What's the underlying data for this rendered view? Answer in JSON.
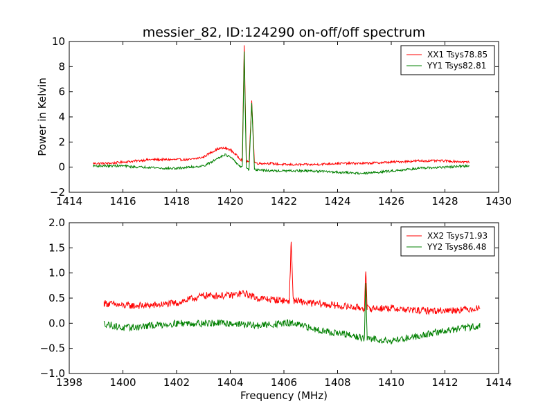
{
  "figure": {
    "title": "messier_82, ID:124290 on-off/off spectrum",
    "xlabel": "Frequency (MHz)",
    "ylabel": "Power in Kelvin"
  },
  "chart_data": [
    {
      "type": "line",
      "title": "messier_82, ID:124290 on-off/off spectrum",
      "ylabel": "Power in Kelvin",
      "xlabel": "",
      "xlim": [
        1414,
        1430
      ],
      "ylim": [
        -2,
        10
      ],
      "xticks": [
        1414,
        1416,
        1418,
        1420,
        1422,
        1424,
        1426,
        1428,
        1430
      ],
      "yticks": [
        -2,
        0,
        2,
        4,
        6,
        8,
        10
      ],
      "grid": false,
      "legend_position": "top-right",
      "series": [
        {
          "name": "XX1 Tsys78.85",
          "color": "#ff0000",
          "x": [
            1414.9,
            1415.5,
            1416.0,
            1416.5,
            1417.0,
            1417.5,
            1418.0,
            1418.5,
            1419.0,
            1419.3,
            1419.6,
            1419.8,
            1420.0,
            1420.2,
            1420.4,
            1420.45,
            1420.52,
            1420.6,
            1420.7,
            1420.8,
            1420.9,
            1421.0,
            1421.5,
            1422.0,
            1423.0,
            1424.0,
            1425.0,
            1426.0,
            1427.0,
            1428.0,
            1428.9
          ],
          "y": [
            0.3,
            0.3,
            0.4,
            0.5,
            0.6,
            0.6,
            0.6,
            0.6,
            0.8,
            1.2,
            1.5,
            1.5,
            1.4,
            1.0,
            0.6,
            0.6,
            9.7,
            0.5,
            0.4,
            5.3,
            0.4,
            0.3,
            0.3,
            0.2,
            0.2,
            0.3,
            0.3,
            0.4,
            0.5,
            0.5,
            0.4
          ]
        },
        {
          "name": "YY1 Tsys82.81",
          "color": "#008000",
          "x": [
            1414.9,
            1415.5,
            1416.0,
            1416.5,
            1417.0,
            1417.5,
            1418.0,
            1418.5,
            1419.0,
            1419.3,
            1419.6,
            1419.8,
            1420.0,
            1420.2,
            1420.4,
            1420.45,
            1420.52,
            1420.6,
            1420.7,
            1420.8,
            1420.9,
            1421.0,
            1421.5,
            1422.0,
            1423.0,
            1424.0,
            1425.0,
            1426.0,
            1427.0,
            1428.0,
            1428.9
          ],
          "y": [
            0.1,
            0.1,
            0.1,
            0.0,
            0.0,
            -0.1,
            -0.1,
            0.0,
            0.1,
            0.4,
            0.8,
            1.0,
            0.8,
            0.4,
            0.0,
            0.0,
            9.2,
            -0.1,
            -0.2,
            5.1,
            -0.2,
            -0.2,
            -0.3,
            -0.3,
            -0.3,
            -0.4,
            -0.5,
            -0.3,
            -0.1,
            0.0,
            0.1
          ]
        }
      ]
    },
    {
      "type": "line",
      "title": "",
      "xlabel": "Frequency (MHz)",
      "ylabel": "",
      "xlim": [
        1398,
        1414
      ],
      "ylim": [
        -1.0,
        2.0
      ],
      "xticks": [
        1398,
        1400,
        1402,
        1404,
        1406,
        1408,
        1410,
        1412,
        1414
      ],
      "yticks": [
        -1.0,
        -0.5,
        0.0,
        0.5,
        1.0,
        1.5,
        2.0
      ],
      "grid": false,
      "legend_position": "top-right",
      "series": [
        {
          "name": "XX2 Tsys71.93",
          "color": "#ff0000",
          "x": [
            1399.3,
            1400.0,
            1401.0,
            1402.0,
            1403.0,
            1404.0,
            1404.5,
            1405.0,
            1406.0,
            1406.2,
            1406.27,
            1406.35,
            1407.0,
            1408.0,
            1409.0,
            1409.05,
            1409.1,
            1410.0,
            1411.0,
            1412.0,
            1413.3
          ],
          "y": [
            0.4,
            0.35,
            0.35,
            0.4,
            0.55,
            0.55,
            0.6,
            0.5,
            0.45,
            0.45,
            1.62,
            0.45,
            0.4,
            0.35,
            0.3,
            1.03,
            0.3,
            0.3,
            0.25,
            0.25,
            0.3
          ]
        },
        {
          "name": "YY2 Tsys86.48",
          "color": "#008000",
          "x": [
            1399.3,
            1400.0,
            1401.0,
            1402.0,
            1403.0,
            1404.0,
            1405.0,
            1406.0,
            1406.27,
            1407.0,
            1408.0,
            1409.0,
            1409.05,
            1409.1,
            1410.0,
            1411.0,
            1412.0,
            1413.3
          ],
          "y": [
            0.0,
            -0.1,
            -0.05,
            0.0,
            0.0,
            0.0,
            -0.05,
            0.0,
            0.0,
            -0.1,
            -0.2,
            -0.3,
            0.8,
            -0.3,
            -0.35,
            -0.25,
            -0.15,
            -0.05
          ]
        }
      ]
    }
  ]
}
